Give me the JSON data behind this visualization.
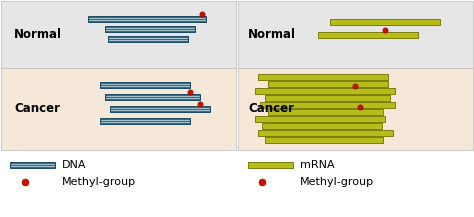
{
  "fig_width": 4.74,
  "fig_height": 2.17,
  "dpi": 100,
  "panel_bg_normal": "#e6e6e6",
  "panel_bg_cancer": "#f5e8d8",
  "dna_color": "#2e6f8e",
  "dna_edge_color": "#1a4a65",
  "mrna_color": "#b8bc1a",
  "mrna_edge_color": "#7a7e0a",
  "methyl_color": "#cc1100",
  "methyl_edge": "#880000",
  "legend_label_dna": "DNA",
  "legend_label_mrna": "mRNA",
  "legend_label_methyl": "Methyl-group",
  "normal_label": "Normal",
  "cancer_label": "Cancer",
  "label_fontsize": 8.5,
  "legend_fontsize": 8
}
